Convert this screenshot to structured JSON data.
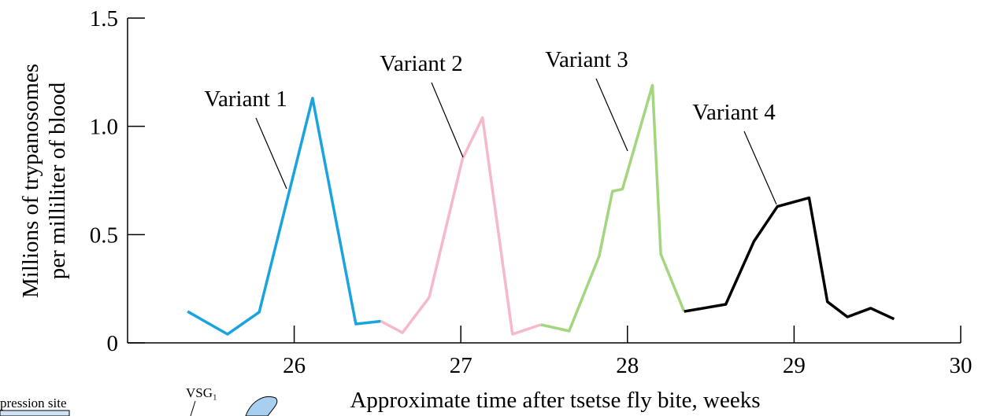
{
  "chart_data": {
    "type": "line",
    "xlabel": "Approximate time after tsetse fly bite, weeks",
    "ylabel": [
      "Millions of trypanosomes",
      "per milliliter of blood"
    ],
    "xlim": [
      25,
      30
    ],
    "xticks": [
      26,
      27,
      28,
      29,
      30
    ],
    "ylim": [
      0,
      1.5
    ],
    "yticks": [
      0,
      0.5,
      {
        "value": 1,
        "label": "1.0"
      },
      1.5
    ],
    "series": [
      {
        "name": "Variant 1",
        "color": "#1ba3e0",
        "x": [
          25.36,
          25.6,
          25.79,
          26.11,
          26.37,
          26.52
        ],
        "values": [
          0.145,
          0.04,
          0.142,
          1.13,
          0.087,
          0.1
        ]
      },
      {
        "name": "Variant 2",
        "color": "#f5b9c9",
        "x": [
          26.52,
          26.65,
          26.81,
          27.01,
          27.13,
          27.31,
          27.48
        ],
        "values": [
          0.1,
          0.047,
          0.21,
          0.85,
          1.04,
          0.04,
          0.084
        ]
      },
      {
        "name": "Variant 3",
        "color": "#a3d67e",
        "x": [
          27.48,
          27.65,
          27.83,
          27.91,
          27.97,
          28.15,
          28.2,
          28.34
        ],
        "values": [
          0.084,
          0.055,
          0.4,
          0.7,
          0.71,
          1.19,
          0.41,
          0.145
        ]
      },
      {
        "name": "Variant 4",
        "color": "#000000",
        "x": [
          28.34,
          28.59,
          28.76,
          28.9,
          29.09,
          29.2,
          29.32,
          29.46,
          29.6
        ],
        "values": [
          0.145,
          0.178,
          0.47,
          0.63,
          0.67,
          0.19,
          0.12,
          0.16,
          0.11
        ]
      }
    ]
  },
  "cropped_labels": [
    "pression site",
    "VSG₁"
  ]
}
